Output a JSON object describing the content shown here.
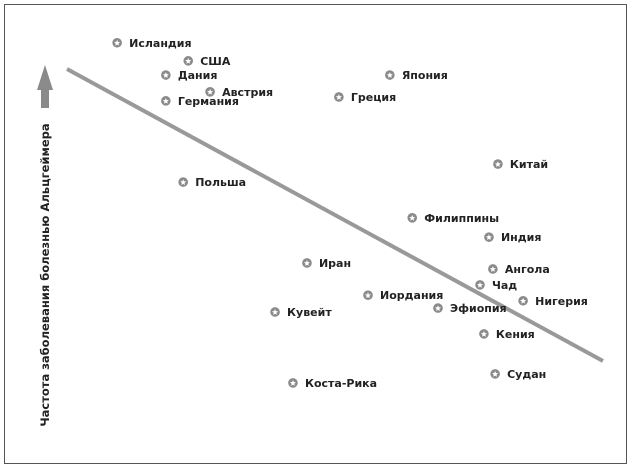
{
  "chart_data": {
    "type": "scatter",
    "title": "",
    "xlabel": "",
    "ylabel": "Частота заболевания болезнью Альцгеймера",
    "xlim": [
      0,
      100
    ],
    "ylim": [
      0,
      100
    ],
    "grid": false,
    "axis_ticks": false,
    "marker": "star-in-circle",
    "colors": {
      "marker": "#8a8a8a",
      "trend": "#999999",
      "text": "#222222",
      "arrow": "#8a8a8a"
    },
    "points": [
      {
        "label": "Исландия",
        "x": 10.2,
        "y": 94.7
      },
      {
        "label": "США",
        "x": 22.9,
        "y": 90.5
      },
      {
        "label": "Дания",
        "x": 18.9,
        "y": 87.2
      },
      {
        "label": "Австрия",
        "x": 26.8,
        "y": 83.3
      },
      {
        "label": "Германия",
        "x": 18.9,
        "y": 81.2
      },
      {
        "label": "Япония",
        "x": 58.9,
        "y": 87.2
      },
      {
        "label": "Греция",
        "x": 49.8,
        "y": 82.1
      },
      {
        "label": "Китай",
        "x": 78.2,
        "y": 66.5
      },
      {
        "label": "Польша",
        "x": 22.0,
        "y": 62.3
      },
      {
        "label": "Филиппины",
        "x": 62.9,
        "y": 54.0
      },
      {
        "label": "Индия",
        "x": 76.6,
        "y": 49.5
      },
      {
        "label": "Иран",
        "x": 44.1,
        "y": 43.5
      },
      {
        "label": "Ангола",
        "x": 77.3,
        "y": 42.1
      },
      {
        "label": "Чад",
        "x": 75.0,
        "y": 38.4
      },
      {
        "label": "Иордания",
        "x": 55.0,
        "y": 36.0
      },
      {
        "label": "Нигерия",
        "x": 82.7,
        "y": 34.7
      },
      {
        "label": "Эфиопия",
        "x": 67.5,
        "y": 33.0
      },
      {
        "label": "Кувейт",
        "x": 38.4,
        "y": 32.1
      },
      {
        "label": "Кения",
        "x": 75.7,
        "y": 27.0
      },
      {
        "label": "Судан",
        "x": 77.7,
        "y": 17.7
      },
      {
        "label": "Коста-Рика",
        "x": 41.6,
        "y": 15.6
      }
    ],
    "trend_line": [
      {
        "x": 1.25,
        "y": 88.6
      },
      {
        "x": 96.96,
        "y": 20.7
      }
    ]
  }
}
